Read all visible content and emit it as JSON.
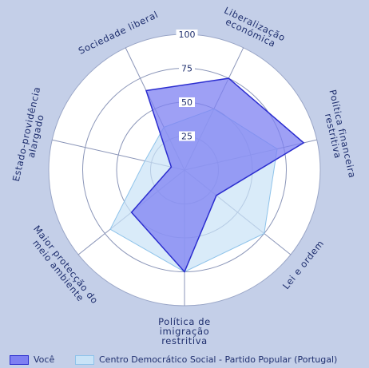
{
  "chart_data": {
    "type": "radar",
    "axes": [
      "Liberalização económica",
      "Política financeira restritiva",
      "Lei e ordem",
      "Política de imigração restritiva",
      "Maior protecção do meio ambiente",
      "Estado-providência alargado",
      "Sociedade liberal"
    ],
    "axis_label_lines": [
      [
        "Liberalização",
        "económica"
      ],
      [
        "Política financeira",
        "restritiva"
      ],
      [
        "Lei e ordem"
      ],
      [
        "Política de",
        "imigração",
        "restritiva"
      ],
      [
        "Maior protecção do",
        "meio ambiente"
      ],
      [
        "Estado-providência",
        "alargado"
      ],
      [
        "Sociedade liberal"
      ]
    ],
    "rlim": [
      0,
      100
    ],
    "ticks": [
      "25",
      "50",
      "75",
      "100"
    ],
    "series": [
      {
        "name": "Você",
        "values": [
          75,
          90,
          30,
          75,
          50,
          10,
          65
        ],
        "color": "#7e80f2",
        "stroke": "#2b2dcf"
      },
      {
        "name": "Centro Democrático Social - Partido Popular (Portugal)",
        "values": [
          50,
          70,
          75,
          75,
          70,
          30,
          35
        ],
        "color": "#c9e3f7",
        "stroke": "#8ec3ea"
      }
    ]
  },
  "legend": {
    "you_label": "Você",
    "party_label": "Centro Democrático Social - Partido Popular (Portugal)"
  }
}
